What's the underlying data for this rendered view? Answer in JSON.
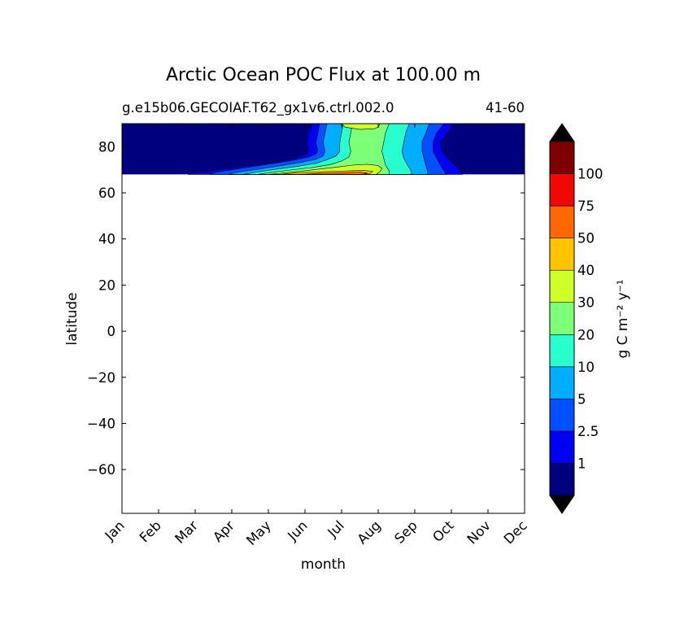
{
  "chart_data": {
    "type": "heatmap",
    "title": "Arctic Ocean POC Flux at 100.00 m",
    "subtitle_left": "g.e15b06.GECOIAF.T62_gx1v6.ctrl.002.0",
    "subtitle_right": "41-60",
    "xlabel": "month",
    "ylabel": "latitude",
    "x_categories": [
      "Jan",
      "Feb",
      "Mar",
      "Apr",
      "May",
      "Jun",
      "Jul",
      "Aug",
      "Sep",
      "Oct",
      "Nov",
      "Dec"
    ],
    "xlim": [
      0,
      11
    ],
    "ylim": [
      -79,
      90
    ],
    "yticks": [
      80,
      60,
      40,
      20,
      0,
      -20,
      -40,
      -60
    ],
    "data_lat_range": [
      68,
      90
    ],
    "colorbar": {
      "label": "g C m⁻² y⁻¹",
      "levels": [
        "1",
        "2.5",
        "5",
        "10",
        "20",
        "30",
        "40",
        "50",
        "75",
        "100"
      ],
      "colors": [
        "#00007f",
        "#0000f2",
        "#0050ff",
        "#00adff",
        "#29ffce",
        "#7dff7a",
        "#ceff29",
        "#ffc400",
        "#ff6800",
        "#f10800",
        "#7f0000"
      ],
      "extend": "both",
      "under_color": "#000000",
      "over_color": "#000000"
    },
    "contours": [
      {
        "level": "1",
        "boundary": [
          [
            1.8,
            68
          ],
          [
            1.9,
            68.3
          ],
          [
            2.3,
            69
          ],
          [
            2.6,
            70
          ],
          [
            3.1,
            71
          ],
          [
            3.6,
            72
          ],
          [
            4.2,
            73.3
          ],
          [
            4.7,
            74.8
          ],
          [
            5.0,
            76.5
          ],
          [
            5.1,
            78
          ],
          [
            5.05,
            82
          ],
          [
            5.1,
            86
          ],
          [
            5.2,
            90
          ]
        ],
        "right": [
          [
            9.1,
            90
          ],
          [
            8.9,
            86
          ],
          [
            8.7,
            82
          ],
          [
            8.75,
            78
          ],
          [
            8.9,
            75
          ],
          [
            9.1,
            72
          ],
          [
            9.25,
            69.5
          ],
          [
            9.3,
            68
          ]
        ]
      },
      {
        "level": "2.5",
        "boundary": [
          [
            2.4,
            68
          ],
          [
            2.6,
            69
          ],
          [
            3.0,
            70
          ],
          [
            3.6,
            71.5
          ],
          [
            4.2,
            72.9
          ],
          [
            4.7,
            74.2
          ],
          [
            5.1,
            75.5
          ],
          [
            5.3,
            76.8
          ],
          [
            5.35,
            78.5
          ],
          [
            5.3,
            82
          ],
          [
            5.35,
            86
          ],
          [
            5.4,
            90
          ]
        ],
        "right": [
          [
            8.8,
            90
          ],
          [
            8.6,
            86
          ],
          [
            8.5,
            82
          ],
          [
            8.5,
            78
          ],
          [
            8.6,
            75
          ],
          [
            8.7,
            72
          ],
          [
            8.8,
            69.5
          ],
          [
            8.85,
            68
          ]
        ]
      },
      {
        "level": "5",
        "boundary": [
          [
            2.9,
            68
          ],
          [
            3.2,
            69
          ],
          [
            3.7,
            70.2
          ],
          [
            4.3,
            71.7
          ],
          [
            4.9,
            73.2
          ],
          [
            5.3,
            74.5
          ],
          [
            5.5,
            76
          ],
          [
            5.55,
            78
          ],
          [
            5.5,
            82
          ],
          [
            5.55,
            86
          ],
          [
            5.6,
            90
          ]
        ],
        "right": [
          [
            8.4,
            90
          ],
          [
            8.3,
            86
          ],
          [
            8.2,
            82
          ],
          [
            8.2,
            78
          ],
          [
            8.25,
            75
          ],
          [
            8.3,
            72
          ],
          [
            8.35,
            69.5
          ],
          [
            8.35,
            68
          ]
        ]
      },
      {
        "level": "10",
        "boundary": [
          [
            3.3,
            68
          ],
          [
            3.7,
            69
          ],
          [
            4.2,
            70.2
          ],
          [
            4.8,
            71.5
          ],
          [
            5.3,
            72.8
          ],
          [
            5.6,
            74.3
          ],
          [
            5.85,
            76
          ],
          [
            5.95,
            78
          ],
          [
            5.95,
            82
          ],
          [
            6.0,
            86
          ],
          [
            6.05,
            90
          ]
        ],
        "right": [
          [
            7.85,
            90
          ],
          [
            7.75,
            86
          ],
          [
            7.7,
            82
          ],
          [
            7.65,
            78
          ],
          [
            7.7,
            75
          ],
          [
            7.8,
            72
          ],
          [
            7.9,
            69.5
          ],
          [
            7.9,
            68
          ]
        ]
      },
      {
        "level": "20",
        "boundary": [
          [
            3.7,
            68
          ],
          [
            4.1,
            68.9
          ],
          [
            4.6,
            69.9
          ],
          [
            5.2,
            71
          ],
          [
            5.7,
            72.3
          ],
          [
            6.0,
            73.8
          ],
          [
            6.2,
            75.5
          ],
          [
            6.25,
            78
          ],
          [
            6.2,
            82
          ],
          [
            6.25,
            86
          ],
          [
            6.3,
            90
          ]
        ],
        "right": [
          [
            7.3,
            90
          ],
          [
            7.2,
            86
          ],
          [
            7.15,
            82
          ],
          [
            7.1,
            78
          ],
          [
            7.15,
            75
          ],
          [
            7.2,
            72
          ],
          [
            7.3,
            69.5
          ],
          [
            7.3,
            68
          ]
        ]
      },
      {
        "level": "30",
        "boundary": [
          [
            4.0,
            68
          ],
          [
            4.4,
            68.6
          ],
          [
            4.9,
            69.4
          ],
          [
            5.4,
            70.3
          ],
          [
            5.9,
            71.2
          ],
          [
            6.3,
            72
          ],
          [
            6.7,
            72.4
          ],
          [
            7.0,
            71.8
          ],
          [
            7.1,
            70.6
          ],
          [
            7.05,
            69.3
          ],
          [
            6.95,
            68
          ]
        ]
      },
      {
        "level": "40",
        "boundary": [
          [
            4.3,
            68
          ],
          [
            4.8,
            68.7
          ],
          [
            5.5,
            69.2
          ],
          [
            6.2,
            69.5
          ],
          [
            6.6,
            69.8
          ],
          [
            6.85,
            69.3
          ],
          [
            6.8,
            68.5
          ],
          [
            6.6,
            68
          ]
        ]
      },
      {
        "level": "50",
        "boundary": [
          [
            4.9,
            68
          ],
          [
            5.4,
            68.5
          ],
          [
            6.0,
            68.7
          ],
          [
            6.5,
            69.0
          ],
          [
            6.7,
            68.6
          ],
          [
            6.6,
            68.1
          ],
          [
            6.5,
            68
          ]
        ]
      }
    ],
    "top_patch": {
      "level": "30",
      "boundary": [
        [
          6.0,
          90
        ],
        [
          6.1,
          88.5
        ],
        [
          6.5,
          87.5
        ],
        [
          6.9,
          87.8
        ],
        [
          7.0,
          88.5
        ],
        [
          7.05,
          90
        ]
      ]
    }
  }
}
